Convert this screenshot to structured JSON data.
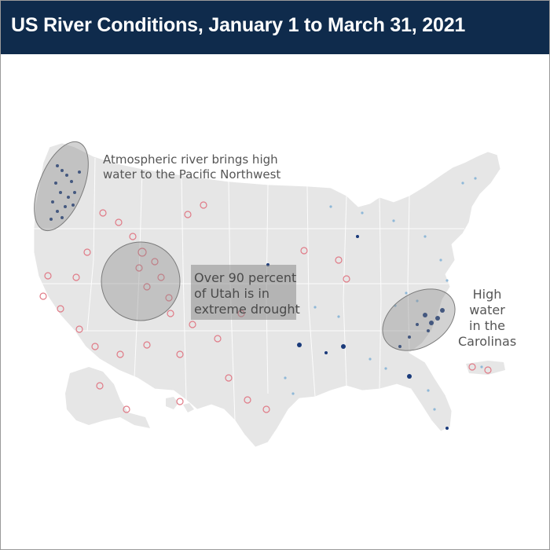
{
  "header": {
    "title": "US River Conditions, January 1 to March 31, 2021",
    "background": "#0f2b4c"
  },
  "annotations": {
    "pacific_northwest": [
      "Atmospheric river brings high",
      "water to the Pacific Northwest"
    ],
    "utah": [
      "Over 90 percent",
      "of Utah is in",
      "extreme drought"
    ],
    "carolinas": [
      "High",
      "water",
      "in the",
      "Carolinas"
    ]
  },
  "colors": {
    "land": "#e6e6e6",
    "drought_marker": "#e07a86",
    "high_water_marker": "#1a3a7a",
    "light_marker": "#8fb8d8",
    "highlight_ellipse": "#8a8a8a"
  }
}
